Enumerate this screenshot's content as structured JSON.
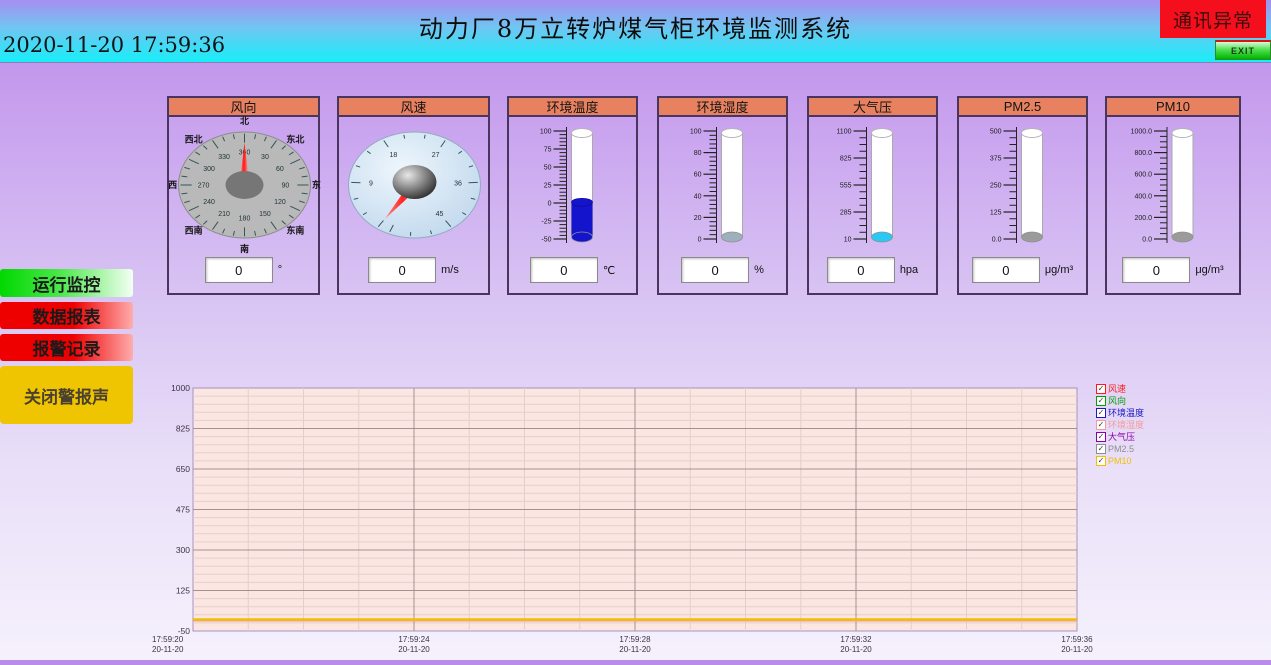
{
  "header": {
    "title": "动力厂8万立转炉煤气柜环境监测系统",
    "datetime": "2020-11-20 17:59:36",
    "comm_status": "通讯异常",
    "exit_label": "EXIT"
  },
  "sidebar": {
    "monitor_label": "运行监控",
    "report_label": "数据报表",
    "alarm_label": "报警记录",
    "mute_label": "关闭警报声"
  },
  "gauges": [
    {
      "id": "wind-direction",
      "title": "风向",
      "value": "0",
      "unit": "°",
      "type": "compass",
      "needle_value": 0,
      "compass_labels": [
        "北",
        "东北",
        "东",
        "东南",
        "南",
        "西南",
        "西",
        "西北"
      ],
      "scale_numbers": [
        30,
        60,
        90,
        120,
        150,
        180,
        210,
        240,
        270,
        300,
        330,
        360
      ]
    },
    {
      "id": "wind-speed",
      "title": "风速",
      "value": "0",
      "unit": "m/s",
      "type": "dial",
      "needle_value": 0,
      "scale_numbers": [
        9,
        18,
        27,
        36,
        45
      ],
      "min": 0,
      "max": 54
    },
    {
      "id": "ambient-temperature",
      "title": "环境温度",
      "value": "0",
      "unit": "℃",
      "type": "thermometer",
      "scale_labels": [
        "100",
        "75",
        "50",
        "25",
        "0",
        "-25",
        "-50"
      ],
      "min": -50,
      "max": 100,
      "level": 0,
      "fill_color": "#1414cc",
      "cap_color": "#1414cc"
    },
    {
      "id": "ambient-humidity",
      "title": "环境湿度",
      "value": "0",
      "unit": "%",
      "type": "thermometer",
      "scale_labels": [
        "100",
        "80",
        "60",
        "40",
        "20",
        "0"
      ],
      "min": 0,
      "max": 100,
      "level": 0,
      "fill_color": null,
      "cap_color": "#9fb0bd"
    },
    {
      "id": "pressure",
      "title": "大气压",
      "value": "0",
      "unit": "hpa",
      "type": "thermometer",
      "scale_labels": [
        "1100",
        "825",
        "555",
        "285",
        "10"
      ],
      "min": 10,
      "max": 1100,
      "level": 0,
      "fill_color": null,
      "cap_color": "#29c9f4"
    },
    {
      "id": "pm25",
      "title": "PM2.5",
      "value": "0",
      "unit": "μg/m³",
      "type": "thermometer",
      "scale_labels": [
        "500",
        "375",
        "250",
        "125",
        "0.0"
      ],
      "min": 0,
      "max": 500,
      "level": 0,
      "fill_color": null,
      "cap_color": "#9b9b9b"
    },
    {
      "id": "pm10",
      "title": "PM10",
      "value": "0",
      "unit": "μg/m³",
      "type": "thermometer",
      "scale_labels": [
        "1000.0",
        "800.0",
        "600.0",
        "400.0",
        "200.0",
        "0.0"
      ],
      "min": 0,
      "max": 1000,
      "level": 0,
      "fill_color": null,
      "cap_color": "#9b9b9b"
    }
  ],
  "chart_data": {
    "type": "line",
    "title": "",
    "xlabel": "",
    "ylabel": "",
    "ylim": [
      -50,
      1000
    ],
    "yticks": [
      1000,
      825,
      650,
      475,
      300,
      125,
      -50
    ],
    "grid": true,
    "legend_position": "right",
    "xticks": [
      {
        "time": "17:59:20",
        "date": "20-11-20"
      },
      {
        "time": "17:59:24",
        "date": "20-11-20"
      },
      {
        "time": "17:59:28",
        "date": "20-11-20"
      },
      {
        "time": "17:59:32",
        "date": "20-11-20"
      },
      {
        "time": "17:59:36",
        "date": "20-11-20"
      }
    ],
    "series": [
      {
        "id": "wind-speed",
        "name": "风速",
        "color": "#ff1a1a",
        "checked": true,
        "values": [
          0,
          0,
          0,
          0,
          0
        ]
      },
      {
        "id": "wind-direction",
        "name": "风向",
        "color": "#00a000",
        "checked": true,
        "values": [
          0,
          0,
          0,
          0,
          0
        ]
      },
      {
        "id": "ambient-temperature",
        "name": "环境温度",
        "color": "#1a1ac0",
        "checked": true,
        "values": [
          0,
          0,
          0,
          0,
          0
        ]
      },
      {
        "id": "ambient-humidity",
        "name": "环境湿度",
        "color": "#f49c9c",
        "checked": true,
        "values": [
          0,
          0,
          0,
          0,
          0
        ]
      },
      {
        "id": "pressure",
        "name": "大气压",
        "color": "#8a00a8",
        "checked": true,
        "values": [
          0,
          0,
          0,
          0,
          0
        ]
      },
      {
        "id": "pm25",
        "name": "PM2.5",
        "color": "#8f8f8f",
        "checked": true,
        "values": [
          0,
          0,
          0,
          0,
          0
        ]
      },
      {
        "id": "pm10",
        "name": "PM10",
        "color": "#f0c000",
        "checked": true,
        "values": [
          0,
          0,
          0,
          0,
          0
        ]
      }
    ]
  }
}
